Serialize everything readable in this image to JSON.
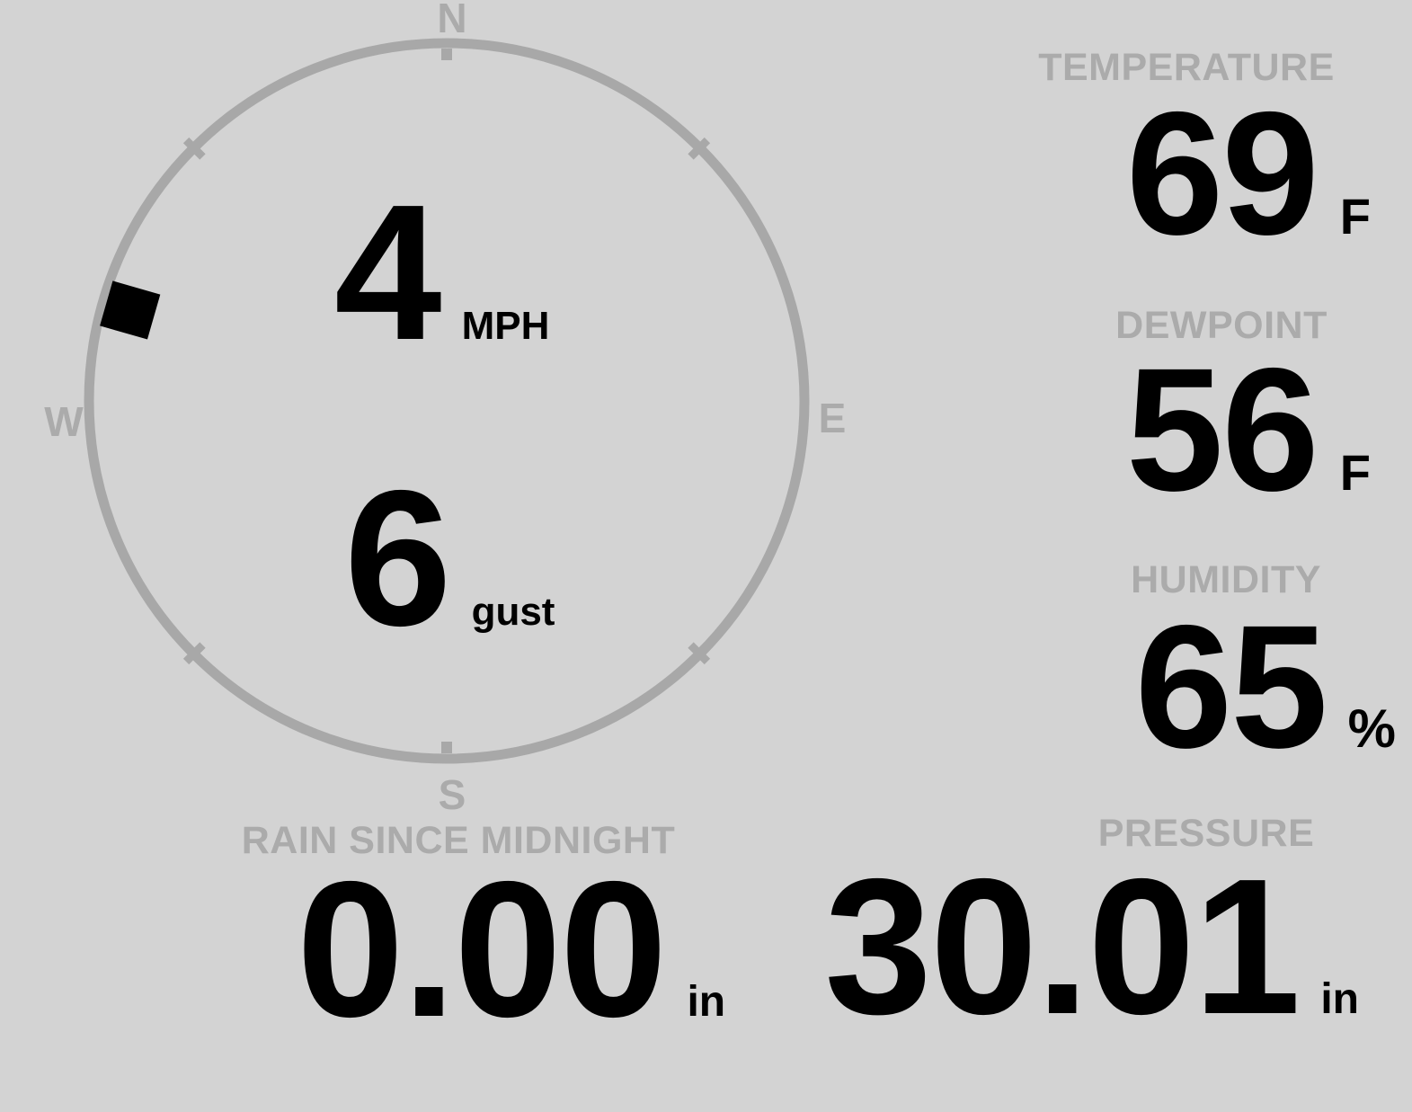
{
  "colors": {
    "background": "#d3d3d3",
    "muted_text": "#ababab",
    "compass_ring": "#a8a8a8",
    "value_text": "#000000",
    "wind_marker": "#000000"
  },
  "compass": {
    "labels": {
      "north": "N",
      "south": "S",
      "east": "E",
      "west": "W"
    },
    "wind": {
      "speed": "4",
      "speed_unit": "MPH",
      "gust": "6",
      "gust_unit": "gust",
      "direction_deg": 286
    }
  },
  "metrics": {
    "temperature": {
      "label": "TEMPERATURE",
      "value": "69",
      "unit": "F"
    },
    "dewpoint": {
      "label": "DEWPOINT",
      "value": "56",
      "unit": "F"
    },
    "humidity": {
      "label": "HUMIDITY",
      "value": "65",
      "unit": "%"
    },
    "rain": {
      "label": "RAIN SINCE MIDNIGHT",
      "value": "0.00",
      "unit": "in"
    },
    "pressure": {
      "label": "PRESSURE",
      "value": "30.01",
      "unit": "in"
    }
  }
}
